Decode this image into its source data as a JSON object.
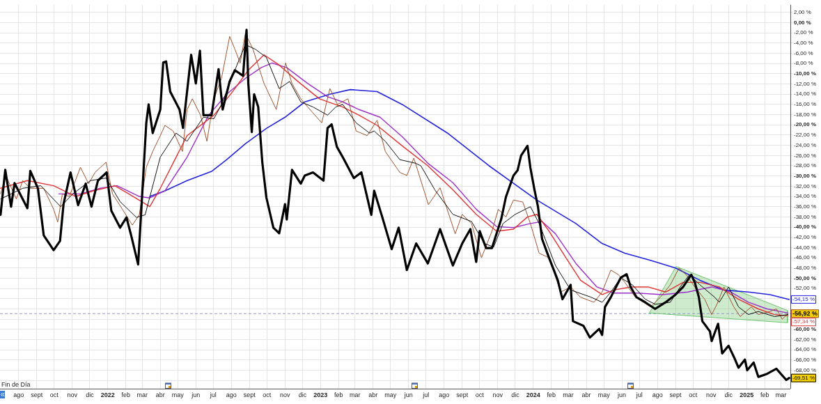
{
  "chart_data": {
    "type": "line",
    "xlim": [
      "2021-06-30",
      "2025-03-17"
    ],
    "ylim": [
      -71.6,
      3.5
    ],
    "xticks": [
      {
        "value": "2021-08-01",
        "label": "ago"
      },
      {
        "value": "2021-09-01",
        "label": "sept"
      },
      {
        "value": "2021-10-01",
        "label": "oct"
      },
      {
        "value": "2021-11-01",
        "label": "nov"
      },
      {
        "value": "2021-12-01",
        "label": "dic"
      },
      {
        "value": "2022-01-01",
        "label": "2022"
      },
      {
        "value": "2022-02-01",
        "label": "feb"
      },
      {
        "value": "2022-03-01",
        "label": "mar"
      },
      {
        "value": "2022-04-01",
        "label": "abr"
      },
      {
        "value": "2022-05-01",
        "label": "may"
      },
      {
        "value": "2022-06-01",
        "label": "jun"
      },
      {
        "value": "2022-07-01",
        "label": "jul"
      },
      {
        "value": "2022-08-01",
        "label": "ago"
      },
      {
        "value": "2022-09-01",
        "label": "sept"
      },
      {
        "value": "2022-10-01",
        "label": "oct"
      },
      {
        "value": "2022-11-01",
        "label": "nov"
      },
      {
        "value": "2022-12-01",
        "label": "dic"
      },
      {
        "value": "2023-01-01",
        "label": "2023"
      },
      {
        "value": "2023-02-01",
        "label": "feb"
      },
      {
        "value": "2023-03-01",
        "label": "mar"
      },
      {
        "value": "2023-04-01",
        "label": "abr"
      },
      {
        "value": "2023-05-01",
        "label": "may"
      },
      {
        "value": "2023-06-01",
        "label": "jun"
      },
      {
        "value": "2023-07-01",
        "label": "jul"
      },
      {
        "value": "2023-08-01",
        "label": "ago"
      },
      {
        "value": "2023-09-01",
        "label": "sept"
      },
      {
        "value": "2023-10-01",
        "label": "oct"
      },
      {
        "value": "2023-11-01",
        "label": "nov"
      },
      {
        "value": "2023-12-01",
        "label": "dic"
      },
      {
        "value": "2024-01-01",
        "label": "2024"
      },
      {
        "value": "2024-02-01",
        "label": "feb"
      },
      {
        "value": "2024-03-01",
        "label": "mar"
      },
      {
        "value": "2024-04-01",
        "label": "abr"
      },
      {
        "value": "2024-05-01",
        "label": "may"
      },
      {
        "value": "2024-06-01",
        "label": "jun"
      },
      {
        "value": "2024-07-01",
        "label": "jul"
      },
      {
        "value": "2024-08-01",
        "label": "ago"
      },
      {
        "value": "2024-09-01",
        "label": "sept"
      },
      {
        "value": "2024-10-01",
        "label": "oct"
      },
      {
        "value": "2024-11-01",
        "label": "nov"
      },
      {
        "value": "2024-12-01",
        "label": "dic"
      },
      {
        "value": "2025-01-01",
        "label": "2025"
      },
      {
        "value": "2025-02-01",
        "label": "feb"
      },
      {
        "value": "2025-03-01",
        "label": "mar"
      }
    ],
    "yticks": [
      {
        "value": 2,
        "label": "2,00 %"
      },
      {
        "value": 0,
        "label": "0,00 %"
      },
      {
        "value": -2,
        "label": "-2,00 %"
      },
      {
        "value": -4,
        "label": "-4,00 %"
      },
      {
        "value": -6,
        "label": "-6,00 %"
      },
      {
        "value": -8,
        "label": "-8,00 %"
      },
      {
        "value": -10,
        "label": "-10,00 %"
      },
      {
        "value": -12,
        "label": "-12,00 %"
      },
      {
        "value": -14,
        "label": "-14,00 %"
      },
      {
        "value": -16,
        "label": "-16,00 %"
      },
      {
        "value": -18,
        "label": "-18,00 %"
      },
      {
        "value": -20,
        "label": "-20,00 %"
      },
      {
        "value": -22,
        "label": "-22,00 %"
      },
      {
        "value": -24,
        "label": "-24,00 %"
      },
      {
        "value": -26,
        "label": "-26,00 %"
      },
      {
        "value": -28,
        "label": "-28,00 %"
      },
      {
        "value": -30,
        "label": "-30,00 %"
      },
      {
        "value": -32,
        "label": "-32,00 %"
      },
      {
        "value": -34,
        "label": "-34,00 %"
      },
      {
        "value": -36,
        "label": "-36,00 %"
      },
      {
        "value": -38,
        "label": "-38,00 %"
      },
      {
        "value": -40,
        "label": "-40,00 %"
      },
      {
        "value": -42,
        "label": "-42,00 %"
      },
      {
        "value": -44,
        "label": "-44,00 %"
      },
      {
        "value": -46,
        "label": "-46,00 %"
      },
      {
        "value": -48,
        "label": "-48,00 %"
      },
      {
        "value": -50,
        "label": "-50,00 %"
      },
      {
        "value": -52,
        "label": "-52,00 %"
      },
      {
        "value": -54,
        "label": null
      },
      {
        "value": -56,
        "label": null
      },
      {
        "value": -58,
        "label": null
      },
      {
        "value": -60,
        "label": "-60,00 %"
      },
      {
        "value": -62,
        "label": "-62,00 %"
      },
      {
        "value": -64,
        "label": "-64,00 %"
      },
      {
        "value": -66,
        "label": "-66,00 %"
      },
      {
        "value": -68,
        "label": "-68,00 %"
      },
      {
        "value": -70,
        "label": null
      }
    ],
    "grid": true,
    "legend": false,
    "marker": "none",
    "ref_lines": [
      {
        "axis": "y",
        "value": -56.92,
        "color": "#9999cc",
        "line_style": "dashed"
      }
    ],
    "annotations": [
      "Fin de Día"
    ],
    "series": [
      {
        "type": "area",
        "color": "#6cc46c",
        "x": [
          "2024-07-18",
          "2024-09-02",
          "2025-03-12",
          "2025-03-12",
          "2024-07-18"
        ],
        "values": [
          -56.8,
          -47.7,
          -56.3,
          -58.7,
          -56.8
        ]
      },
      {
        "color": "#2222dd",
        "x": [
          "2022-03-14",
          "2022-04-09",
          "2022-05-17",
          "2022-06-28",
          "2022-07-24",
          "2022-08-25",
          "2022-09-30",
          "2022-11-01",
          "2022-12-05",
          "2023-01-17",
          "2023-02-21",
          "2023-04-08",
          "2023-05-21",
          "2023-08-08",
          "2023-10-17",
          "2024-01-07",
          "2024-03-14",
          "2024-04-28",
          "2024-06-06",
          "2024-07-20",
          "2024-09-01",
          "2024-10-13",
          "2024-11-23",
          "2025-01-04",
          "2025-02-10",
          "2025-03-15"
        ],
        "values": [
          -34,
          -32.9,
          -30.9,
          -29.1,
          -26.8,
          -23.7,
          -20.7,
          -18.5,
          -15.5,
          -14,
          -13.1,
          -13.5,
          -16,
          -21.7,
          -28,
          -34.7,
          -39.3,
          -43.2,
          -45.1,
          -46.5,
          -48,
          -50.4,
          -52.3,
          -52.7,
          -53.2,
          -54.15
        ],
        "value_labels": [
          null,
          null,
          null,
          null,
          null,
          null,
          null,
          null,
          null,
          null,
          null,
          null,
          null,
          null,
          null,
          null,
          null,
          null,
          null,
          null,
          null,
          null,
          null,
          null,
          null,
          "-54,15 %"
        ]
      },
      {
        "color": "#9b30c8",
        "x": [
          "2021-10-09",
          "2021-11-15",
          "2021-12-19",
          "2022-01-17",
          "2022-02-24",
          "2022-03-14",
          "2022-04-09",
          "2022-05-17",
          "2022-06-23",
          "2022-07-24",
          "2022-08-25",
          "2022-09-21",
          "2022-10-10",
          "2022-11-04",
          "2022-12-10",
          "2023-01-13",
          "2023-02-08",
          "2023-03-08",
          "2023-04-13",
          "2023-05-21",
          "2023-07-04",
          "2023-08-16",
          "2023-09-25",
          "2023-10-30",
          "2023-11-28",
          "2023-12-27",
          "2024-01-16",
          "2024-02-08",
          "2024-03-14",
          "2024-04-19",
          "2024-05-18",
          "2024-06-27",
          "2024-08-10",
          "2024-09-22",
          "2024-11-02",
          "2024-12-05",
          "2025-01-04",
          "2025-02-05",
          "2025-03-13"
        ],
        "values": [
          -33.5,
          -33.5,
          -32.4,
          -31.9,
          -34,
          -34.3,
          -32.9,
          -26.3,
          -18.1,
          -14,
          -10.9,
          -8.8,
          -7.9,
          -8.8,
          -11.9,
          -14.5,
          -15.5,
          -17,
          -18.5,
          -22.3,
          -27.5,
          -31.3,
          -36.5,
          -39.9,
          -40.1,
          -39.3,
          -38.9,
          -41.3,
          -47.1,
          -51.7,
          -52.9,
          -52.9,
          -53.2,
          -52.7,
          -51.7,
          -52.7,
          -54.7,
          -56,
          -56.8
        ]
      },
      {
        "color": "#e03333",
        "x": [
          "2021-07-01",
          "2021-08-16",
          "2021-09-30",
          "2021-11-07",
          "2021-12-07",
          "2022-01-13",
          "2022-02-06",
          "2022-03-14",
          "2022-04-01",
          "2022-05-17",
          "2022-07-02",
          "2022-08-03",
          "2022-08-30",
          "2022-09-26",
          "2022-10-22",
          "2022-11-23",
          "2022-12-30",
          "2023-02-08",
          "2023-03-08",
          "2023-04-08",
          "2023-05-21",
          "2023-07-04",
          "2023-08-16",
          "2023-09-25",
          "2023-10-30",
          "2023-11-28",
          "2023-12-22",
          "2024-01-07",
          "2024-01-28",
          "2024-02-26",
          "2024-03-22",
          "2024-04-28",
          "2024-05-18",
          "2024-06-16",
          "2024-07-16",
          "2024-08-15",
          "2024-09-14",
          "2024-10-13",
          "2024-11-15",
          "2024-12-18",
          "2025-01-21",
          "2025-02-18",
          "2025-03-13"
        ],
        "values": [
          -32.4,
          -30.9,
          -31.9,
          -34,
          -32.9,
          -31.9,
          -33.5,
          -36,
          -32.4,
          -22.1,
          -18.1,
          -13.5,
          -9.3,
          -6.3,
          -8.3,
          -11.5,
          -14.9,
          -16.5,
          -18.1,
          -20.1,
          -24.1,
          -28,
          -32.7,
          -37.5,
          -40.8,
          -40.4,
          -38,
          -37.5,
          -40.8,
          -46,
          -50.4,
          -53.2,
          -52.3,
          -51.7,
          -51.7,
          -52.7,
          -50.8,
          -50.8,
          -51.7,
          -54.1,
          -56,
          -57.1,
          -57.34
        ],
        "value_labels": [
          null,
          null,
          null,
          null,
          null,
          null,
          null,
          null,
          null,
          null,
          null,
          null,
          null,
          null,
          null,
          null,
          null,
          null,
          null,
          null,
          null,
          null,
          null,
          null,
          null,
          null,
          null,
          null,
          null,
          null,
          null,
          null,
          null,
          null,
          null,
          null,
          null,
          null,
          null,
          null,
          null,
          null,
          "-57,34 %"
        ]
      },
      {
        "color": "#a0522d",
        "x": [
          "2021-07-01",
          "2021-07-10",
          "2021-07-28",
          "2021-08-08",
          "2021-08-21",
          "2021-09-13",
          "2021-09-30",
          "2021-10-07",
          "2021-10-15",
          "2021-10-27",
          "2021-11-15",
          "2021-11-29",
          "2021-12-10",
          "2021-12-29",
          "2022-01-09",
          "2022-01-26",
          "2022-02-12",
          "2022-02-24",
          "2022-03-08",
          "2022-03-19",
          "2022-04-01",
          "2022-04-09",
          "2022-04-23",
          "2022-05-09",
          "2022-05-17",
          "2022-05-26",
          "2022-06-09",
          "2022-06-20",
          "2022-07-02",
          "2022-07-15",
          "2022-07-29",
          "2022-08-07",
          "2022-08-16",
          "2022-08-25",
          "2022-09-07",
          "2022-09-26",
          "2022-10-17",
          "2022-11-02",
          "2022-11-13",
          "2022-11-28",
          "2022-12-10",
          "2023-01-03",
          "2023-01-17",
          "2023-01-30",
          "2023-02-17",
          "2023-03-03",
          "2023-03-22",
          "2023-04-08",
          "2023-04-22",
          "2023-05-17",
          "2023-05-29",
          "2023-06-10",
          "2023-07-05",
          "2023-07-25",
          "2023-08-20",
          "2023-09-01",
          "2023-09-17",
          "2023-10-04",
          "2023-10-22",
          "2023-11-02",
          "2023-11-15",
          "2023-11-28",
          "2023-12-14",
          "2023-12-27",
          "2024-01-11",
          "2024-01-28",
          "2024-02-17",
          "2024-03-05",
          "2024-03-22",
          "2024-04-14",
          "2024-04-28",
          "2024-05-13",
          "2024-05-26",
          "2024-06-06",
          "2024-06-24",
          "2024-07-20",
          "2024-08-06",
          "2024-08-23",
          "2024-09-07",
          "2024-09-19",
          "2024-10-04",
          "2024-10-21",
          "2024-11-02",
          "2024-11-11",
          "2024-11-23",
          "2024-12-10",
          "2024-12-21",
          "2025-01-09",
          "2025-01-21",
          "2025-02-10",
          "2025-02-21",
          "2025-03-03",
          "2025-03-13"
        ],
        "values": [
          -33.5,
          -29.9,
          -34.5,
          -30.9,
          -32.4,
          -32.4,
          -36.5,
          -39,
          -33.5,
          -34,
          -28.3,
          -31.5,
          -29.3,
          -27.3,
          -33.5,
          -36.5,
          -39.6,
          -37.6,
          -28.3,
          -25.2,
          -22.1,
          -20.1,
          -21.2,
          -25.2,
          -17,
          -14.9,
          -18.1,
          -23.2,
          -14.9,
          -10.9,
          -2.7,
          -5.2,
          -7.9,
          -2.1,
          -5.2,
          -11.9,
          -17,
          -7.9,
          -11.9,
          -14.9,
          -16.5,
          -19.6,
          -12.9,
          -16,
          -14.9,
          -21.2,
          -22.1,
          -19.1,
          -25.2,
          -29.3,
          -29.9,
          -26.5,
          -35.6,
          -32.3,
          -41.3,
          -37.5,
          -39.3,
          -46,
          -40.8,
          -36.5,
          -38,
          -34.7,
          -35.1,
          -39.3,
          -45.1,
          -46,
          -52.7,
          -51.7,
          -53.7,
          -54.7,
          -52.7,
          -48.4,
          -49.3,
          -50.8,
          -53.7,
          -55.6,
          -53.7,
          -51.3,
          -48,
          -49.3,
          -51.7,
          -54.1,
          -57.1,
          -55.1,
          -51.7,
          -55.6,
          -57.5,
          -55.6,
          -57.1,
          -56.5,
          -56,
          -58,
          -56.92
        ],
        "value_labels": [
          null,
          null,
          null,
          null,
          null,
          null,
          null,
          null,
          null,
          null,
          null,
          null,
          null,
          null,
          null,
          null,
          null,
          null,
          null,
          null,
          null,
          null,
          null,
          null,
          null,
          null,
          null,
          null,
          null,
          null,
          null,
          null,
          null,
          null,
          null,
          null,
          null,
          null,
          null,
          null,
          null,
          null,
          null,
          null,
          null,
          null,
          null,
          null,
          null,
          null,
          null,
          null,
          null,
          null,
          null,
          null,
          null,
          null,
          null,
          null,
          null,
          null,
          null,
          null,
          null,
          null,
          null,
          null,
          null,
          null,
          null,
          null,
          null,
          null,
          null,
          null,
          null,
          null,
          null,
          null,
          null,
          null,
          null,
          null,
          null,
          null,
          null,
          null,
          null,
          null,
          null,
          null,
          "-56,92 %"
        ]
      },
      {
        "color": "#111111",
        "x": [
          "2021-07-01",
          "2021-08-08",
          "2021-09-08",
          "2021-10-12",
          "2021-11-02",
          "2021-12-02",
          "2021-12-29",
          "2022-01-22",
          "2022-02-19",
          "2022-03-06",
          "2022-04-01",
          "2022-04-28",
          "2022-05-17",
          "2022-06-14",
          "2022-07-02",
          "2022-07-15",
          "2022-08-07",
          "2022-08-25",
          "2022-09-11",
          "2022-09-30",
          "2022-10-22",
          "2022-11-09",
          "2022-11-28",
          "2022-12-19",
          "2023-01-13",
          "2023-01-27",
          "2023-02-08",
          "2023-03-03",
          "2023-03-26",
          "2023-04-03",
          "2023-04-22",
          "2023-05-17",
          "2023-06-13",
          "2023-06-22",
          "2023-07-16",
          "2023-08-16",
          "2023-09-17",
          "2023-10-09",
          "2023-10-25",
          "2023-11-10",
          "2023-12-01",
          "2023-12-27",
          "2024-01-11",
          "2024-02-08",
          "2024-03-05",
          "2024-04-09",
          "2024-04-28",
          "2024-05-13",
          "2024-05-30",
          "2024-06-19",
          "2024-07-11",
          "2024-07-28",
          "2024-08-23",
          "2024-09-09",
          "2024-09-25",
          "2024-10-13",
          "2024-11-07",
          "2024-11-15",
          "2024-12-01",
          "2024-12-18",
          "2025-01-04",
          "2025-01-21",
          "2025-02-18",
          "2025-03-13"
        ],
        "values": [
          -34.5,
          -32.4,
          -31.9,
          -36,
          -33.5,
          -30.9,
          -30.4,
          -35,
          -38.1,
          -37.6,
          -26.3,
          -21.6,
          -23.2,
          -18.5,
          -18.8,
          -16,
          -9.3,
          -4.3,
          -5.2,
          -6.8,
          -12.9,
          -11.5,
          -15.5,
          -16.5,
          -18.1,
          -16.5,
          -16,
          -19.6,
          -21.6,
          -21.2,
          -23.2,
          -26.8,
          -27.5,
          -28,
          -32.7,
          -37.5,
          -38.9,
          -43.2,
          -43.9,
          -39.3,
          -37.5,
          -36,
          -39.3,
          -47.5,
          -52.3,
          -53.7,
          -54.7,
          -52.7,
          -49.9,
          -51.3,
          -54.1,
          -55.1,
          -54.7,
          -51.7,
          -49.3,
          -51.3,
          -53.7,
          -54.7,
          -51.7,
          -55.6,
          -57.1,
          -56.5,
          -57.5,
          -57.1
        ]
      },
      {
        "color": "#000000",
        "x": [
          "2021-07-01",
          "2021-07-09",
          "2021-07-19",
          "2021-07-25",
          "2021-08-16",
          "2021-08-21",
          "2021-09-03",
          "2021-09-13",
          "2021-09-30",
          "2021-10-11",
          "2021-10-17",
          "2021-10-29",
          "2021-11-11",
          "2021-11-24",
          "2021-12-04",
          "2021-12-15",
          "2021-12-30",
          "2022-01-07",
          "2022-01-22",
          "2022-02-02",
          "2022-02-10",
          "2022-02-22",
          "2022-03-01",
          "2022-03-08",
          "2022-03-12",
          "2022-03-19",
          "2022-04-01",
          "2022-04-06",
          "2022-04-11",
          "2022-04-18",
          "2022-05-04",
          "2022-05-10",
          "2022-05-24",
          "2022-06-01",
          "2022-06-08",
          "2022-06-14",
          "2022-06-28",
          "2022-07-10",
          "2022-07-17",
          "2022-07-29",
          "2022-08-07",
          "2022-08-21",
          "2022-08-27",
          "2022-08-30",
          "2022-09-05",
          "2022-09-09",
          "2022-09-16",
          "2022-09-23",
          "2022-09-30",
          "2022-10-12",
          "2022-10-22",
          "2022-11-01",
          "2022-11-04",
          "2022-11-13",
          "2022-11-28",
          "2022-12-05",
          "2022-12-19",
          "2023-01-06",
          "2023-01-13",
          "2023-01-20",
          "2023-01-29",
          "2023-02-08",
          "2023-02-27",
          "2023-03-12",
          "2023-03-29",
          "2023-04-03",
          "2023-04-17",
          "2023-05-03",
          "2023-05-15",
          "2023-05-29",
          "2023-06-14",
          "2023-07-04",
          "2023-07-25",
          "2023-08-16",
          "2023-09-01",
          "2023-09-15",
          "2023-09-25",
          "2023-10-01",
          "2023-10-12",
          "2023-10-22",
          "2023-11-07",
          "2023-11-15",
          "2023-11-28",
          "2023-12-05",
          "2023-12-11",
          "2023-12-22",
          "2023-12-27",
          "2024-01-03",
          "2024-01-09",
          "2024-01-16",
          "2024-01-28",
          "2024-02-12",
          "2024-02-20",
          "2024-03-05",
          "2024-03-09",
          "2024-03-27",
          "2024-04-07",
          "2024-04-23",
          "2024-04-28",
          "2024-05-03",
          "2024-05-13",
          "2024-05-30",
          "2024-06-09",
          "2024-06-16",
          "2024-06-26",
          "2024-07-11",
          "2024-07-28",
          "2024-08-15",
          "2024-09-01",
          "2024-09-14",
          "2024-09-28",
          "2024-10-04",
          "2024-10-11",
          "2024-10-17",
          "2024-10-30",
          "2024-11-02",
          "2024-11-13",
          "2024-11-20",
          "2024-12-01",
          "2024-12-11",
          "2024-12-18",
          "2024-12-29",
          "2025-01-02",
          "2025-01-13",
          "2025-01-21",
          "2025-02-05",
          "2025-02-21",
          "2025-03-10",
          "2025-03-15"
        ],
        "values": [
          -37.6,
          -28.8,
          -36,
          -31.4,
          -36.3,
          -29,
          -32.4,
          -41.6,
          -44.5,
          -42.7,
          -35.5,
          -29.3,
          -35.7,
          -31.5,
          -36,
          -30.9,
          -29.3,
          -36.8,
          -40.1,
          -38.1,
          -41.6,
          -47.3,
          -33.5,
          -19.6,
          -16,
          -21.6,
          -17,
          -7.8,
          -7.6,
          -13.5,
          -17,
          -20.6,
          -6.3,
          -11.9,
          -5.5,
          -18.1,
          -18.1,
          -9.1,
          -17,
          -11.5,
          -9.3,
          -10.4,
          -1.4,
          -11.9,
          -21.4,
          -14,
          -16.5,
          -27.3,
          -34.2,
          -40.1,
          -41.2,
          -35.5,
          -38.5,
          -28.8,
          -31.5,
          -29.9,
          -29.3,
          -30.9,
          -20.6,
          -19.9,
          -24.3,
          -26.3,
          -30.4,
          -29.3,
          -37.6,
          -32.9,
          -38.1,
          -44.3,
          -40.1,
          -48.4,
          -43.2,
          -47.1,
          -40.4,
          -47.5,
          -43.2,
          -40.4,
          -46.8,
          -40.8,
          -44.1,
          -44.1,
          -38.4,
          -34.1,
          -29.9,
          -28.9,
          -26,
          -24.1,
          -28.4,
          -32.7,
          -36,
          -42.3,
          -46,
          -50.4,
          -54.1,
          -51.3,
          -58.4,
          -59.3,
          -61.6,
          -59.9,
          -61.1,
          -55.6,
          -53.7,
          -49.9,
          -49.2,
          -51.7,
          -53.7,
          -54.7,
          -56,
          -54.7,
          -53.2,
          -51.7,
          -49.3,
          -50.8,
          -53.7,
          -58.4,
          -60.4,
          -62.3,
          -58.9,
          -64.7,
          -63.2,
          -65.6,
          -67.5,
          -65.9,
          -68,
          -66.5,
          -69.3,
          -68.7,
          -67.7,
          -69.9,
          -69.51
        ],
        "value_labels": [
          null,
          null,
          null,
          null,
          null,
          null,
          null,
          null,
          null,
          null,
          null,
          null,
          null,
          null,
          null,
          null,
          null,
          null,
          null,
          null,
          null,
          null,
          null,
          null,
          null,
          null,
          null,
          null,
          null,
          null,
          null,
          null,
          null,
          null,
          null,
          null,
          null,
          null,
          null,
          null,
          null,
          null,
          null,
          null,
          null,
          null,
          null,
          null,
          null,
          null,
          null,
          null,
          null,
          null,
          null,
          null,
          null,
          null,
          null,
          null,
          null,
          null,
          null,
          null,
          null,
          null,
          null,
          null,
          null,
          null,
          null,
          null,
          null,
          null,
          null,
          null,
          null,
          null,
          null,
          null,
          null,
          null,
          null,
          null,
          null,
          null,
          null,
          null,
          null,
          null,
          null,
          null,
          null,
          null,
          null,
          null,
          null,
          null,
          null,
          null,
          null,
          null,
          null,
          null,
          null,
          null,
          null,
          null,
          null,
          null,
          null,
          null,
          null,
          null,
          null,
          null,
          null,
          null,
          null,
          null,
          null,
          null,
          null,
          null,
          null,
          null,
          null,
          null,
          "-69,51 %"
        ]
      }
    ]
  }
}
